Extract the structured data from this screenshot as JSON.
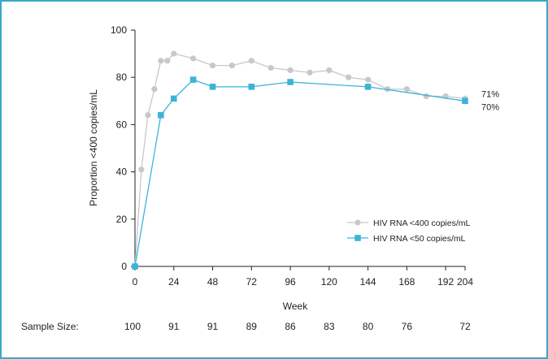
{
  "chart_data": {
    "type": "line",
    "xlabel": "Week",
    "ylabel": "Proportion <400 copies/mL",
    "xlim": [
      0,
      204
    ],
    "ylim": [
      0,
      100
    ],
    "x_ticks": [
      "0",
      "24",
      "48",
      "72",
      "96",
      "120",
      "144",
      "168",
      "192",
      "204"
    ],
    "y_ticks": [
      "0",
      "20",
      "40",
      "60",
      "80",
      "100"
    ],
    "legend_position": "bottom-right",
    "grid": false,
    "series": [
      {
        "name": "HIV RNA <400 copies/mL",
        "color": "#c8c8cc",
        "marker": "circle",
        "x": [
          0,
          4,
          8,
          12,
          16,
          20,
          24,
          36,
          48,
          60,
          72,
          84,
          96,
          108,
          120,
          132,
          144,
          156,
          168,
          180,
          192,
          204
        ],
        "y": [
          0,
          41,
          64,
          75,
          87,
          87,
          90,
          88,
          85,
          85,
          87,
          84,
          83,
          82,
          83,
          80,
          79,
          75,
          75,
          72,
          72,
          71
        ],
        "end_label": "71%"
      },
      {
        "name": "HIV RNA <50 copies/mL",
        "color": "#3bb4d8",
        "marker": "square",
        "x": [
          0,
          16,
          24,
          36,
          48,
          72,
          96,
          144,
          204
        ],
        "y": [
          0,
          64,
          71,
          79,
          76,
          76,
          78,
          76,
          70
        ],
        "end_label": "70%"
      }
    ],
    "sample_size": {
      "label": "Sample Size:",
      "values": [
        {
          "week": 0,
          "n": "100"
        },
        {
          "week": 24,
          "n": "91"
        },
        {
          "week": 48,
          "n": "91"
        },
        {
          "week": 72,
          "n": "89"
        },
        {
          "week": 96,
          "n": "86"
        },
        {
          "week": 120,
          "n": "83"
        },
        {
          "week": 144,
          "n": "80"
        },
        {
          "week": 168,
          "n": "76"
        },
        {
          "week": 204,
          "n": "72"
        }
      ]
    }
  }
}
